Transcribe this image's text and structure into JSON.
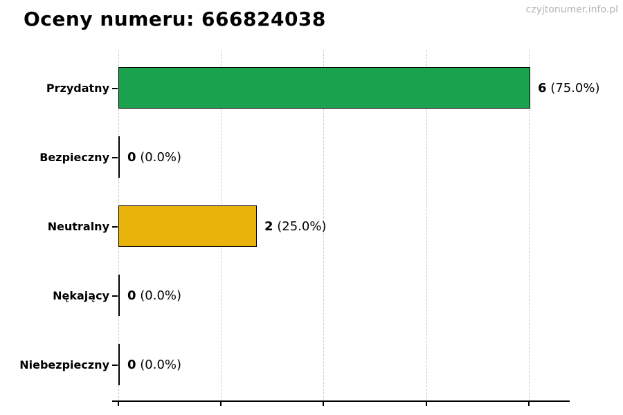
{
  "title": "Oceny numeru: 666824038",
  "watermark": "czyjtonumer.info.pl",
  "chart_data": {
    "type": "bar",
    "orientation": "horizontal",
    "title": "Oceny numeru: 666824038",
    "categories": [
      "Przydatny",
      "Bezpieczny",
      "Neutralny",
      "Nękający",
      "Niebezpieczny"
    ],
    "values": [
      6,
      0,
      2,
      0,
      0
    ],
    "percentages": [
      75.0,
      0.0,
      25.0,
      0.0,
      0.0
    ],
    "value_labels": [
      "6 (75.0%)",
      "0 (0.0%)",
      "2 (25.0%)",
      "0 (0.0%)",
      "0 (0.0%)"
    ],
    "xlim": [
      0,
      6.6
    ],
    "xticks": [
      0,
      1.5,
      3,
      4.5,
      6
    ],
    "xtick_labels_visible": false,
    "grid": "dashed-vertical",
    "gridline_color": "#c9c9c9",
    "axis_color": "#000000",
    "bar_edge_color": "#000000",
    "colors": {
      "positive": "#1AA24E",
      "neutral": "#E9B30B"
    },
    "rows": [
      {
        "category": "Przydatny",
        "value": 6,
        "count": "6",
        "pct_text": " (75.0%)",
        "color": "#1AA24E"
      },
      {
        "category": "Bezpieczny",
        "value": 0,
        "count": "0",
        "pct_text": " (0.0%)",
        "color": "#000000"
      },
      {
        "category": "Neutralny",
        "value": 2,
        "count": "2",
        "pct_text": " (25.0%)",
        "color": "#E9B30B"
      },
      {
        "category": "Nękający",
        "value": 0,
        "count": "0",
        "pct_text": " (0.0%)",
        "color": "#000000"
      },
      {
        "category": "Niebezpieczny",
        "value": 0,
        "count": "0",
        "pct_text": " (0.0%)",
        "color": "#000000"
      }
    ]
  }
}
